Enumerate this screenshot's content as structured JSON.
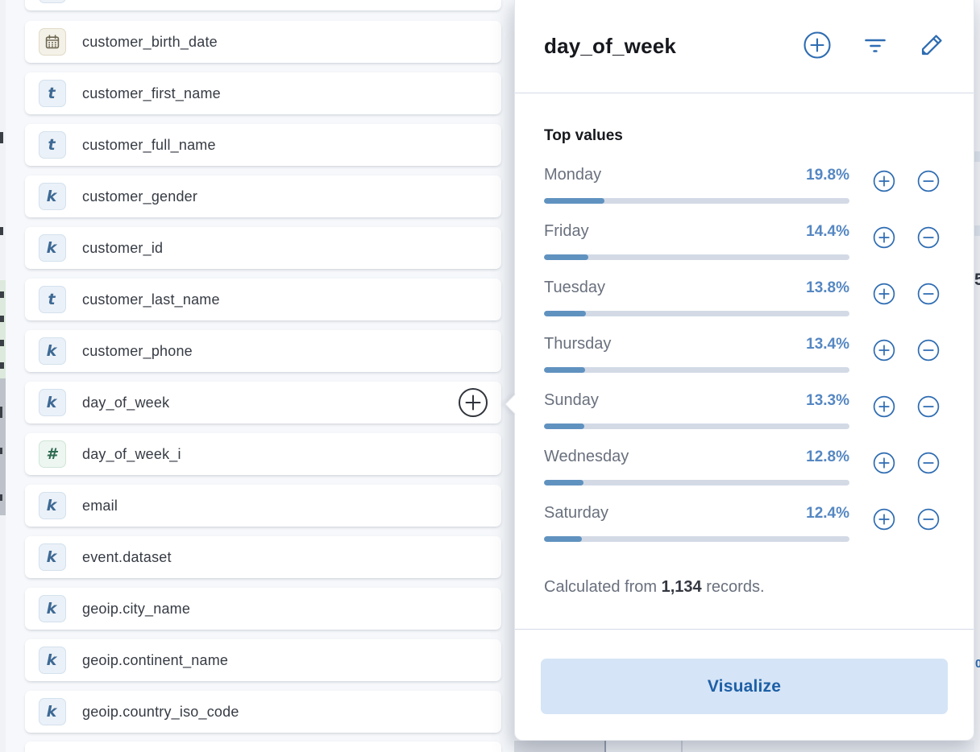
{
  "field_list": {
    "type_letters": {
      "keyword": "k",
      "text": "t",
      "number": "#"
    },
    "items": [
      {
        "name": "customer_birth_date",
        "type": "date",
        "has_add_icon": false
      },
      {
        "name": "customer_first_name",
        "type": "text",
        "has_add_icon": false
      },
      {
        "name": "customer_full_name",
        "type": "text",
        "has_add_icon": false
      },
      {
        "name": "customer_gender",
        "type": "keyword",
        "has_add_icon": false
      },
      {
        "name": "customer_id",
        "type": "keyword",
        "has_add_icon": false
      },
      {
        "name": "customer_last_name",
        "type": "text",
        "has_add_icon": false
      },
      {
        "name": "customer_phone",
        "type": "keyword",
        "has_add_icon": false
      },
      {
        "name": "day_of_week",
        "type": "keyword",
        "has_add_icon": true
      },
      {
        "name": "day_of_week_i",
        "type": "number",
        "has_add_icon": false
      },
      {
        "name": "email",
        "type": "keyword",
        "has_add_icon": false
      },
      {
        "name": "event.dataset",
        "type": "keyword",
        "has_add_icon": false
      },
      {
        "name": "geoip.city_name",
        "type": "keyword",
        "has_add_icon": false
      },
      {
        "name": "geoip.continent_name",
        "type": "keyword",
        "has_add_icon": false
      },
      {
        "name": "geoip.country_iso_code",
        "type": "keyword",
        "has_add_icon": false
      }
    ]
  },
  "popover": {
    "title": "day_of_week",
    "section_title": "Top values",
    "top_values": [
      {
        "label": "Monday",
        "pct": "19.8%",
        "value": 19.8
      },
      {
        "label": "Friday",
        "pct": "14.4%",
        "value": 14.4
      },
      {
        "label": "Tuesday",
        "pct": "13.8%",
        "value": 13.8
      },
      {
        "label": "Thursday",
        "pct": "13.4%",
        "value": 13.4
      },
      {
        "label": "Sunday",
        "pct": "13.3%",
        "value": 13.3
      },
      {
        "label": "Wednesday",
        "pct": "12.8%",
        "value": 12.8
      },
      {
        "label": "Saturday",
        "pct": "12.4%",
        "value": 12.4
      }
    ],
    "calculated_prefix": "Calculated from",
    "record_count": "1,134",
    "calculated_suffix": "records.",
    "visualize_label": "Visualize"
  },
  "background": {
    "clipped_digit": "5"
  },
  "colors": {
    "accent_blue": "#2E6CB2",
    "bar_fill": "#6092C0",
    "bar_track": "#D3DAE6",
    "percent_text": "#5587C2",
    "label_gray": "#69707D",
    "dark_text": "#16181D",
    "visualize_bg": "#D5E4F6",
    "visualize_text": "#1D5FA6"
  }
}
